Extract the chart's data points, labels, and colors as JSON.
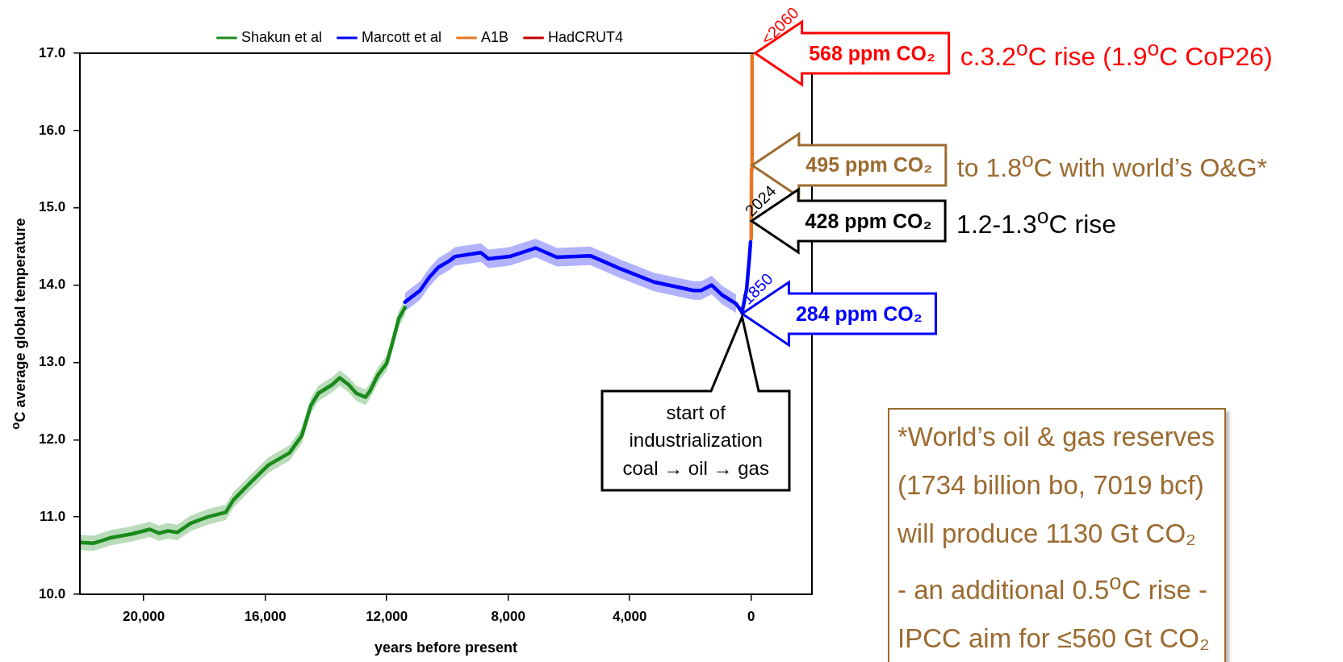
{
  "chart_data": {
    "type": "line",
    "xlabel": "years before present",
    "ylabel": "$^{o}$C average global temperature",
    "xlim": [
      22100,
      -2000
    ],
    "xticks": [
      {
        "value": 20000,
        "label": "20,000"
      },
      {
        "value": 16000,
        "label": "16,000"
      },
      {
        "value": 12000,
        "label": "12,000"
      },
      {
        "value": 8000,
        "label": "8,000"
      },
      {
        "value": 4000,
        "label": "4,000"
      },
      0
    ],
    "ylim": [
      10,
      17
    ],
    "yticks": [
      {
        "value": 10,
        "label": "10.0"
      },
      {
        "value": 11,
        "label": "11.0"
      },
      {
        "value": 12,
        "label": "12.0"
      },
      {
        "value": 13,
        "label": "13.0"
      },
      {
        "value": 14,
        "label": "14.0"
      },
      {
        "value": 15,
        "label": "15.0"
      },
      {
        "value": 16,
        "label": "16.0"
      },
      {
        "value": 17,
        "label": "17.0"
      }
    ],
    "grid": false,
    "legend": "top",
    "marker": "none",
    "line_style": "solid",
    "series": [
      {
        "name": "Shakun et al",
        "color": "#1a8a1a",
        "x": [
          22100,
          21650,
          21100,
          20400,
          19800,
          19500,
          19200,
          18900,
          18450,
          17900,
          17300,
          17050,
          16500,
          15900,
          15200,
          14800,
          14500,
          14250,
          13800,
          13550,
          13250,
          13000,
          12700,
          12550,
          12300,
          12000,
          11800,
          11600,
          11400
        ],
        "values": [
          10.67,
          10.66,
          10.73,
          10.78,
          10.84,
          10.79,
          10.82,
          10.8,
          10.92,
          11.0,
          11.06,
          11.22,
          11.44,
          11.67,
          11.83,
          12.05,
          12.44,
          12.6,
          12.71,
          12.8,
          12.71,
          12.6,
          12.55,
          12.63,
          12.83,
          12.99,
          13.27,
          13.57,
          13.71
        ],
        "lower": [
          10.57,
          10.56,
          10.63,
          10.68,
          10.74,
          10.69,
          10.72,
          10.7,
          10.82,
          10.9,
          10.96,
          11.12,
          11.34,
          11.57,
          11.73,
          11.95,
          12.34,
          12.5,
          12.61,
          12.7,
          12.61,
          12.5,
          12.45,
          12.53,
          12.73,
          12.89,
          13.17,
          13.47,
          13.61
        ],
        "upper": [
          10.77,
          10.76,
          10.83,
          10.88,
          10.94,
          10.89,
          10.92,
          10.9,
          11.02,
          11.1,
          11.16,
          11.32,
          11.54,
          11.77,
          11.93,
          12.15,
          12.54,
          12.7,
          12.81,
          12.9,
          12.81,
          12.7,
          12.65,
          12.73,
          12.93,
          13.09,
          13.37,
          13.67,
          13.81
        ]
      },
      {
        "name": "Marcott et al",
        "color": "#0000ff",
        "x": [
          11400,
          10900,
          10600,
          10300,
          9950,
          9750,
          8900,
          8650,
          7950,
          7100,
          6400,
          5300,
          4300,
          3200,
          1900,
          1650,
          1300,
          950,
          500,
          300,
          150,
          60,
          20
        ],
        "values": [
          13.78,
          13.93,
          14.1,
          14.23,
          14.31,
          14.37,
          14.42,
          14.34,
          14.37,
          14.48,
          14.36,
          14.38,
          14.21,
          14.04,
          13.93,
          13.93,
          14.0,
          13.87,
          13.76,
          13.65,
          13.95,
          14.35,
          14.56
        ],
        "lower": [
          13.66,
          13.81,
          13.98,
          14.11,
          14.19,
          14.25,
          14.3,
          14.22,
          14.25,
          14.36,
          14.24,
          14.26,
          14.09,
          13.92,
          13.81,
          13.81,
          13.88,
          13.75,
          13.64,
          null,
          null,
          null,
          null
        ],
        "upper": [
          13.9,
          14.05,
          14.22,
          14.35,
          14.43,
          14.49,
          14.54,
          14.46,
          14.49,
          14.6,
          14.48,
          14.5,
          14.33,
          14.16,
          14.05,
          14.05,
          14.12,
          13.99,
          13.88,
          null,
          null,
          null,
          null
        ]
      },
      {
        "name": "A1B",
        "color": "#e87722",
        "x": [
          0,
          -10,
          -30
        ],
        "values": [
          14.6,
          15.5,
          17.0
        ]
      },
      {
        "name": "HadCRUT4",
        "color": "#c00000"
      }
    ],
    "annotations": [
      {
        "text": "568 ppm CO₂",
        "x": -130,
        "y": 17.0
      },
      {
        "text": "<2060",
        "x": -130,
        "y": 17.0
      },
      "c.3.2$^{o}$C rise (1.9$^{o}$C CoP26)",
      {
        "text": "495 ppm CO₂",
        "x": -30,
        "y": 15.55
      },
      "to 1.8$^{o}$C with world’s O&G*",
      {
        "text": "2024",
        "x": -10,
        "y": 14.83
      },
      {
        "text": "428 ppm CO₂",
        "x": -10,
        "y": 14.83
      },
      "1.2-1.3$^{o}$C rise",
      {
        "text": "1850",
        "x": 300,
        "y": 13.63
      },
      {
        "text": "284 ppm CO₂",
        "x": 300,
        "y": 13.63
      },
      "start of\nindustrialization\ncoal → oil → gas",
      "*World’s oil & gas reserves\n(1734 billion bo, 7019 bcf)\nwill produce 1130 Gt CO₂\n- an additional 0.5$^{o}$C rise -\nIPCC aim for ≤560 Gt CO₂"
    ]
  }
}
